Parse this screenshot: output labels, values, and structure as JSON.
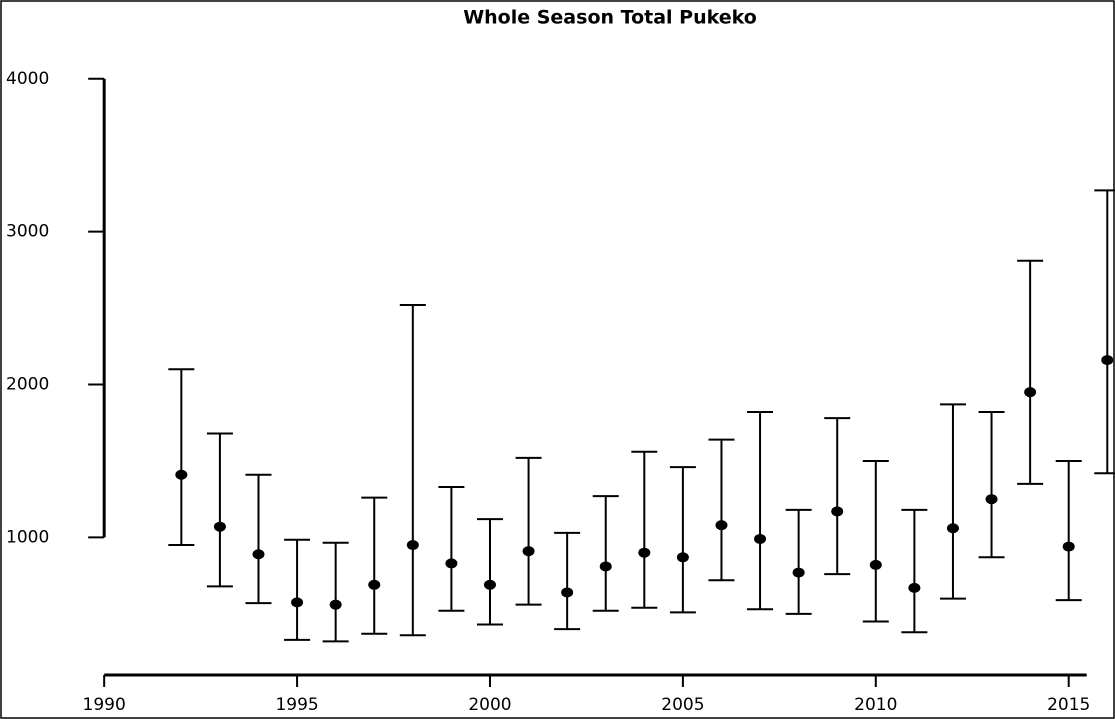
{
  "chart_data": {
    "type": "errorbar",
    "title": "Whole Season Total Pukeko",
    "x": [
      1992,
      1993,
      1994,
      1995,
      1996,
      1997,
      1998,
      1999,
      2000,
      2001,
      2002,
      2003,
      2004,
      2005,
      2006,
      2007,
      2008,
      2009,
      2010,
      2011,
      2012,
      2013,
      2014,
      2015,
      2016
    ],
    "series": [
      {
        "color": "#000000",
        "values": [
          1410,
          1070,
          890,
          575,
          560,
          690,
          950,
          830,
          690,
          910,
          640,
          810,
          900,
          870,
          1080,
          990,
          770,
          1170,
          820,
          670,
          1060,
          1250,
          1950,
          940,
          2160
        ],
        "lower": [
          950,
          680,
          570,
          330,
          320,
          370,
          360,
          520,
          430,
          560,
          400,
          520,
          540,
          510,
          720,
          530,
          500,
          760,
          450,
          380,
          600,
          870,
          1350,
          590,
          1420
        ],
        "upper": [
          2100,
          1680,
          1410,
          985,
          965,
          1260,
          2520,
          1330,
          1120,
          1520,
          1030,
          1270,
          1560,
          1460,
          1640,
          1820,
          1180,
          1780,
          1500,
          1180,
          1870,
          1820,
          2810,
          1500,
          3270
        ]
      }
    ],
    "xlim": [
      1987.3,
      2016.2
    ],
    "xticks": [
      1990,
      1995,
      2000,
      2005,
      2010,
      2015
    ],
    "ylim": [
      100,
      4450
    ],
    "yticks": [
      1000,
      2000,
      3000,
      4000
    ]
  }
}
